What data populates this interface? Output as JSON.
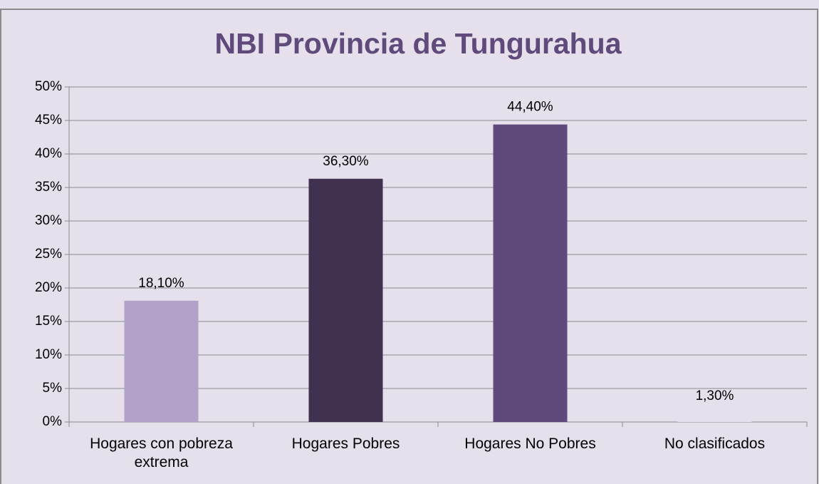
{
  "chart_data": {
    "type": "bar",
    "title": "NBI Provincia de Tungurahua",
    "categories": [
      "Hogares con pobreza extrema",
      "Hogares Pobres",
      "Hogares No Pobres",
      "No clasificados"
    ],
    "values": [
      18.1,
      36.3,
      44.4,
      1.3
    ],
    "value_labels": [
      "18,10%",
      "36,30%",
      "44,40%",
      "1,30%"
    ],
    "colors": [
      "#b3a2c7",
      "#403151",
      "#604a7b",
      "#e6e0ec"
    ],
    "ylim": [
      0,
      50
    ],
    "yticks": [
      {
        "value": 0,
        "label": "0%"
      },
      {
        "value": 5,
        "label": "5%"
      },
      {
        "value": 10,
        "label": "10%"
      },
      {
        "value": 15,
        "label": "15%"
      },
      {
        "value": 20,
        "label": "20%"
      },
      {
        "value": 25,
        "label": "25%"
      },
      {
        "value": 30,
        "label": "30%"
      },
      {
        "value": 35,
        "label": "35%"
      },
      {
        "value": 40,
        "label": "40%"
      },
      {
        "value": 45,
        "label": "45%"
      },
      {
        "value": 50,
        "label": "50%"
      }
    ],
    "grid": true
  }
}
